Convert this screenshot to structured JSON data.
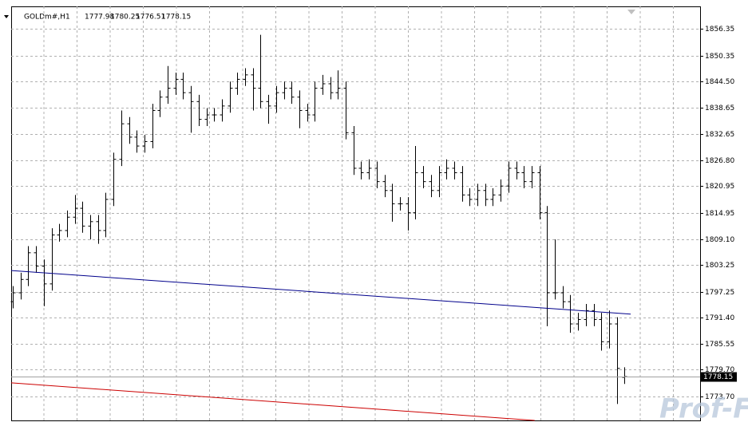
{
  "chart_data": {
    "type": "ohlc",
    "symbol": "GOLDm#,H1",
    "watermark": "Prof-FX",
    "ylim": [
      1768.3,
      1861.4
    ],
    "yticks": [
      1856.35,
      1850.35,
      {
        "value": 1844.5,
        "label": "1844.50"
      },
      1838.65,
      1832.65,
      {
        "value": 1826.8,
        "label": "1826.80"
      },
      1820.95,
      1814.95,
      {
        "value": 1809.1,
        "label": "1809.10"
      },
      1803.25,
      1797.25,
      {
        "value": 1791.4,
        "label": "1791.40"
      },
      1785.55,
      {
        "value": 1779.7,
        "label": "1779.70"
      },
      {
        "value": 1773.7,
        "label": "1773.70"
      }
    ],
    "grid": true,
    "series": {
      "color": "#000000",
      "open": [
        1795,
        1797,
        1800,
        1806,
        1803,
        1799,
        1810,
        1811,
        1814,
        1816,
        1812,
        1813,
        1811,
        1818,
        1827,
        1835,
        1832,
        1830,
        1831,
        1838,
        1841,
        1843,
        1845,
        1842,
        1840,
        1836,
        1837,
        1837,
        1839,
        1843,
        1845,
        1846,
        1843,
        1840,
        1839,
        1842,
        1843,
        1841,
        1838,
        1837,
        1843,
        1844,
        1842,
        1843,
        1833,
        1825,
        1824,
        1825,
        1822,
        1820,
        1817,
        1817,
        1815,
        1824,
        1822,
        1820,
        1824,
        1825,
        1824,
        1819,
        1818,
        1820,
        1818,
        1819,
        1821,
        1825,
        1824,
        1822,
        1824,
        1815,
        1797,
        1797,
        1795,
        1790,
        1791,
        1793,
        1791,
        1786,
        1790,
        1777.98
      ],
      "high": [
        1798.5,
        1801.5,
        1807.5,
        1807.5,
        1804.5,
        1811.5,
        1812.5,
        1815.5,
        1819,
        1817.5,
        1814.5,
        1814.5,
        1819.5,
        1828.5,
        1838,
        1836.5,
        1833.5,
        1832.5,
        1839.5,
        1842.5,
        1848,
        1846.5,
        1846.5,
        1843.5,
        1841.5,
        1838.5,
        1838.5,
        1840.5,
        1844.5,
        1846.5,
        1847.5,
        1847.5,
        1855,
        1841.5,
        1843.5,
        1844.5,
        1844.5,
        1842.5,
        1839.5,
        1844.5,
        1846,
        1845.5,
        1847,
        1844.5,
        1834.5,
        1826.5,
        1827,
        1826.5,
        1823.5,
        1821.5,
        1818.5,
        1818.5,
        1830,
        1825.5,
        1823.5,
        1825.5,
        1827,
        1826.5,
        1825.5,
        1820.5,
        1821.5,
        1821.5,
        1820.5,
        1822.5,
        1826.5,
        1826.5,
        1825.5,
        1825.5,
        1825.5,
        1816.5,
        1809,
        1798.5,
        1796.5,
        1792.5,
        1794.5,
        1794.5,
        1792.5,
        1793,
        1791.5,
        1780.25
      ],
      "low": [
        1793.5,
        1795.5,
        1798.5,
        1801.5,
        1794,
        1797.5,
        1808.5,
        1809.5,
        1812.5,
        1810.5,
        1809,
        1808,
        1809.5,
        1816.5,
        1825.5,
        1830.5,
        1828.5,
        1828.5,
        1829.5,
        1836.5,
        1839.5,
        1841.5,
        1840.5,
        1833,
        1834.5,
        1834.5,
        1835.5,
        1835.5,
        1837.5,
        1841.5,
        1843.5,
        1838,
        1838.5,
        1835,
        1837.5,
        1840.5,
        1839.5,
        1834,
        1835.5,
        1835.5,
        1841.5,
        1840.5,
        1840.5,
        1831.5,
        1823.5,
        1822.5,
        1822.5,
        1820.5,
        1818.5,
        1813,
        1815.5,
        1811,
        1813.5,
        1820.5,
        1818.5,
        1818.5,
        1822.5,
        1822.5,
        1817.5,
        1816.5,
        1816.5,
        1816.5,
        1816.5,
        1817.5,
        1819.5,
        1822.5,
        1820.5,
        1820.5,
        1813.5,
        1789.5,
        1795.5,
        1793.5,
        1788,
        1788.5,
        1789.5,
        1789.5,
        1784,
        1784.5,
        1772,
        1776.51
      ],
      "close": [
        1797,
        1800,
        1806,
        1803,
        1799,
        1810,
        1811,
        1814,
        1816,
        1812,
        1813,
        1811,
        1818,
        1827,
        1835,
        1832,
        1830,
        1831,
        1838,
        1841,
        1843,
        1845,
        1842,
        1840,
        1836,
        1837,
        1837,
        1839,
        1843,
        1845,
        1846,
        1843,
        1840,
        1839,
        1842,
        1843,
        1841,
        1838,
        1837,
        1843,
        1844,
        1842,
        1843,
        1833,
        1825,
        1824,
        1825,
        1822,
        1820,
        1817,
        1817,
        1815,
        1824,
        1822,
        1820,
        1824,
        1825,
        1824,
        1819,
        1818,
        1820,
        1818,
        1819,
        1821,
        1825,
        1824,
        1822,
        1824,
        1815,
        1797,
        1797,
        1795,
        1790,
        1791,
        1793,
        1791,
        1786,
        1790,
        1780,
        1778.15
      ]
    },
    "lines": [
      {
        "color": "#00008b",
        "x": [
          -0.2,
          79.8
        ],
        "y": [
          1802.0,
          1792.2
        ]
      },
      {
        "color": "#cc0000",
        "x": [
          -0.2,
          67.4
        ],
        "y": [
          1776.75,
          1768.3
        ]
      }
    ]
  }
}
